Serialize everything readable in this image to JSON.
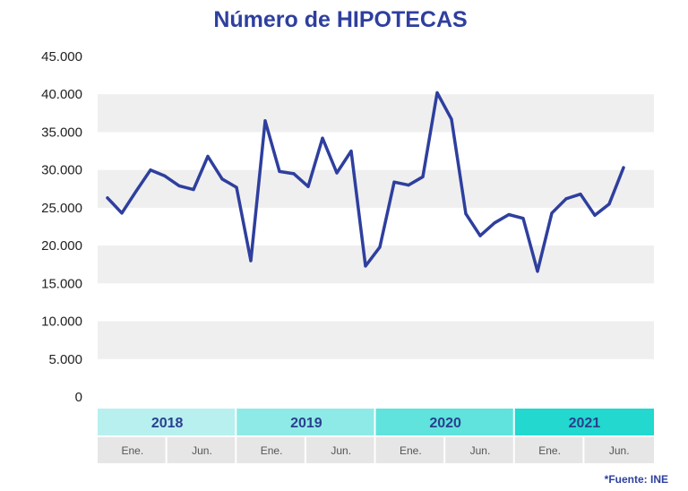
{
  "title": "Número de HIPOTECAS",
  "source": "*Fuente: INE",
  "colors": {
    "line": "#2e3f9e",
    "band": "#efefef",
    "year_bg": [
      "#b7f0ef",
      "#8eeae6",
      "#5fe3dc",
      "#22d8cf"
    ],
    "month_bg": "#e6e6e6"
  },
  "chart_data": {
    "type": "line",
    "title": "Número de HIPOTECAS",
    "ylim": [
      0,
      45000
    ],
    "yticks": [
      "0",
      "5.000",
      "10.000",
      "15.000",
      "20.000",
      "25.000",
      "30.000",
      "35.000",
      "40.000",
      "45.000"
    ],
    "grid": "alternating horizontal bands",
    "years": [
      "2018",
      "2019",
      "2020",
      "2021"
    ],
    "month_labels": [
      "Ene.",
      "Jun.",
      "Ene.",
      "Jun.",
      "Ene.",
      "Jun.",
      "Ene.",
      "Jun."
    ],
    "series": [
      {
        "values": [
          26300,
          24300,
          27200,
          30000,
          29200,
          27900,
          27400,
          31800,
          28800,
          27700,
          18000,
          36500,
          29800,
          29500,
          27800,
          34200,
          29600,
          32500,
          17300,
          19800,
          28400,
          28000,
          29100,
          40200,
          36700,
          24200,
          21300,
          23000,
          24100,
          23600,
          16600,
          24300,
          26200,
          26800,
          24000,
          25500,
          30300
        ]
      }
    ]
  }
}
